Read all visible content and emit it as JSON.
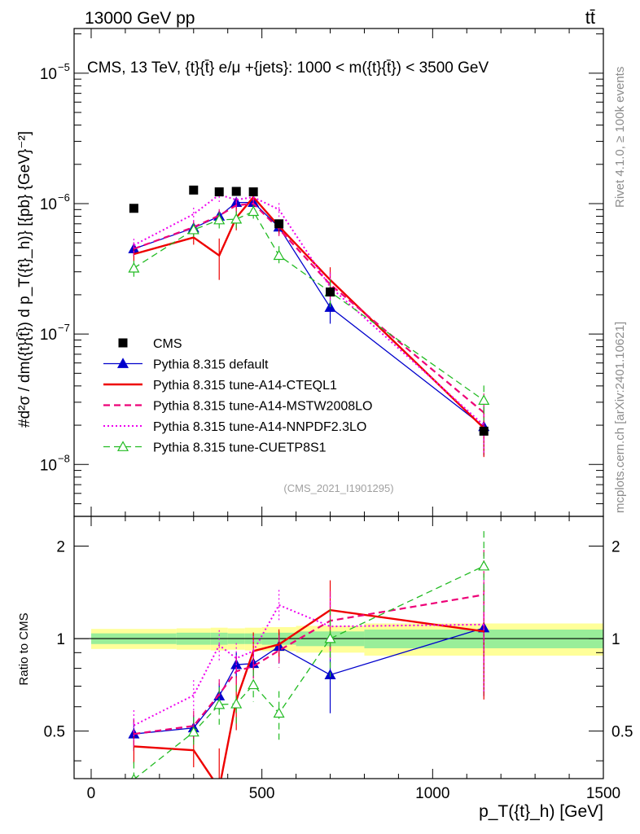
{
  "header": {
    "left": "13000 GeV pp",
    "right": "tt̄",
    "side_top": "Rivet 4.1.0, ≥ 100k events",
    "side_bottom": "mcplots.cern.ch [arXiv:2401.10621]"
  },
  "chart_data": {
    "type": "line",
    "title": "CMS, 13 TeV, {t}{t̄} e/μ +{jets}: 1000 < m({t}{t̄}) < 3500 GeV",
    "analysis_tag": "(CMS_2021_I1901295)",
    "xlabel": "p_T({t}_h) [GeV]",
    "ylabel": "#d²σ / dm({t}{t̄}) d p_T({t}_h)} [{pb} {GeV}⁻²]",
    "ratio_ylabel": "Ratio to CMS",
    "xlim": [
      -50,
      1500
    ],
    "ylim": [
      4e-09,
      2.2e-05
    ],
    "ratio_ylim": [
      0.35,
      2.5
    ],
    "x_ticks": [
      0,
      500,
      1000,
      1500
    ],
    "y_ticks": [
      {
        "value": 1e-08,
        "exp": "−8"
      },
      {
        "value": 1e-07,
        "exp": "−7"
      },
      {
        "value": 1e-06,
        "exp": "−6"
      },
      {
        "value": 1e-05,
        "exp": "−5"
      }
    ],
    "ratio_ticks": [
      {
        "value": 0.5,
        "label": "0.5"
      },
      {
        "value": 1,
        "label": "1"
      },
      {
        "value": 2,
        "label": "2"
      }
    ],
    "x": [
      125,
      300,
      375,
      425,
      475,
      550,
      700,
      1150
    ],
    "bin_edges": [
      0,
      250,
      350,
      400,
      450,
      500,
      600,
      800,
      1500
    ],
    "data_series": {
      "name": "CMS",
      "values": [
        9.2e-07,
        1.27e-06,
        1.23e-06,
        1.24e-06,
        1.23e-06,
        7e-07,
        2.1e-07,
        1.8e-08
      ],
      "band_inner": [
        0.04,
        0.045,
        0.045,
        0.04,
        0.04,
        0.045,
        0.055,
        0.07
      ],
      "band_outer": [
        0.075,
        0.08,
        0.085,
        0.08,
        0.085,
        0.09,
        0.1,
        0.12
      ]
    },
    "series": [
      {
        "name": "Pythia 8.315 default",
        "color": "#0000cc",
        "style": "solid",
        "width": 1.3,
        "marker": "triangle-filled",
        "values": [
          4.5e-07,
          6.5e-07,
          8e-07,
          1.02e-06,
          1.02e-06,
          6.6e-07,
          1.6e-07,
          1.95e-08
        ],
        "err": [
          0.12,
          0.1,
          0.1,
          0.1,
          0.1,
          0.12,
          0.25,
          0.4
        ]
      },
      {
        "name": "Pythia 8.315 tune-A14-CTEQL1",
        "color": "#ee0000",
        "style": "solid",
        "width": 2.4,
        "marker": "none",
        "values": [
          4.1e-07,
          5.5e-07,
          4e-07,
          7.8e-07,
          1.12e-06,
          6.7e-07,
          2.6e-07,
          1.9e-08
        ],
        "err": [
          0.12,
          0.12,
          0.35,
          0.2,
          0.15,
          0.12,
          0.25,
          0.4
        ]
      },
      {
        "name": "Pythia 8.315 tune-A14-MSTW2008LO",
        "color": "#ee0077",
        "style": "dashed",
        "width": 2.2,
        "marker": "none",
        "values": [
          4.5e-07,
          6.6e-07,
          8.1e-07,
          9.7e-07,
          1e-06,
          6.4e-07,
          2.4e-07,
          2.5e-08
        ],
        "err": [
          0.12,
          0.12,
          0.12,
          0.12,
          0.12,
          0.12,
          0.25,
          0.4
        ]
      },
      {
        "name": "Pythia 8.315 tune-A14-NNPDF2.3LO",
        "color": "#ee00ee",
        "style": "dotted",
        "width": 2.0,
        "marker": "none",
        "values": [
          4.8e-07,
          8.3e-07,
          1.17e-06,
          1.07e-06,
          1.12e-06,
          9e-07,
          2.3e-07,
          2e-08
        ],
        "err": [
          0.12,
          0.12,
          0.12,
          0.12,
          0.12,
          0.12,
          0.25,
          0.4
        ]
      },
      {
        "name": "Pythia 8.315 tune-CUETP8S1",
        "color": "#22bb22",
        "style": "dashed",
        "width": 1.3,
        "marker": "triangle-open",
        "values": [
          3.2e-07,
          6.3e-07,
          7.5e-07,
          7.6e-07,
          8.7e-07,
          4e-07,
          2.1e-07,
          3.1e-08
        ],
        "err": [
          0.14,
          0.12,
          0.14,
          0.15,
          0.12,
          0.18,
          0.25,
          0.3
        ]
      }
    ],
    "legend_position": "lower-left"
  }
}
